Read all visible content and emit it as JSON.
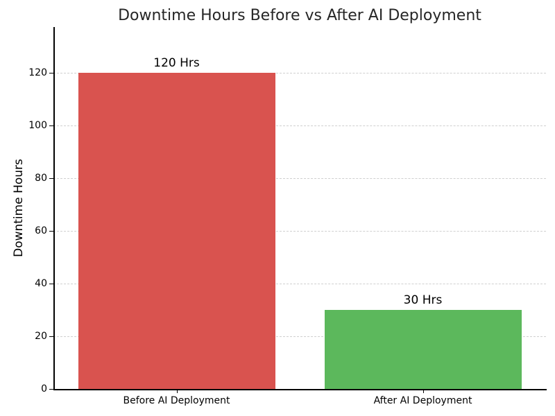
{
  "chart_data": {
    "type": "bar",
    "title": "Downtime Hours Before vs After AI Deployment",
    "categories": [
      "Before AI Deployment",
      "After AI Deployment"
    ],
    "values": [
      120,
      30
    ],
    "bar_labels": [
      "120 Hrs",
      "30 Hrs"
    ],
    "bar_colors": [
      "#d9534f",
      "#5cb85c"
    ],
    "bar_names": [
      "bar-before-ai-deployment",
      "bar-after-ai-deployment"
    ],
    "xlabel": "",
    "ylabel": "Downtime Hours",
    "yticks": [
      0,
      20,
      40,
      60,
      80,
      100,
      120
    ],
    "ylim": [
      0,
      137.4
    ],
    "grid": "horizontal-dashed",
    "legend_position": "none",
    "colors": {
      "background": "#ffffff",
      "grid": "#cfcfcf",
      "axis": "#000000",
      "title_text": "#262626",
      "tick_text": "#000000"
    }
  }
}
